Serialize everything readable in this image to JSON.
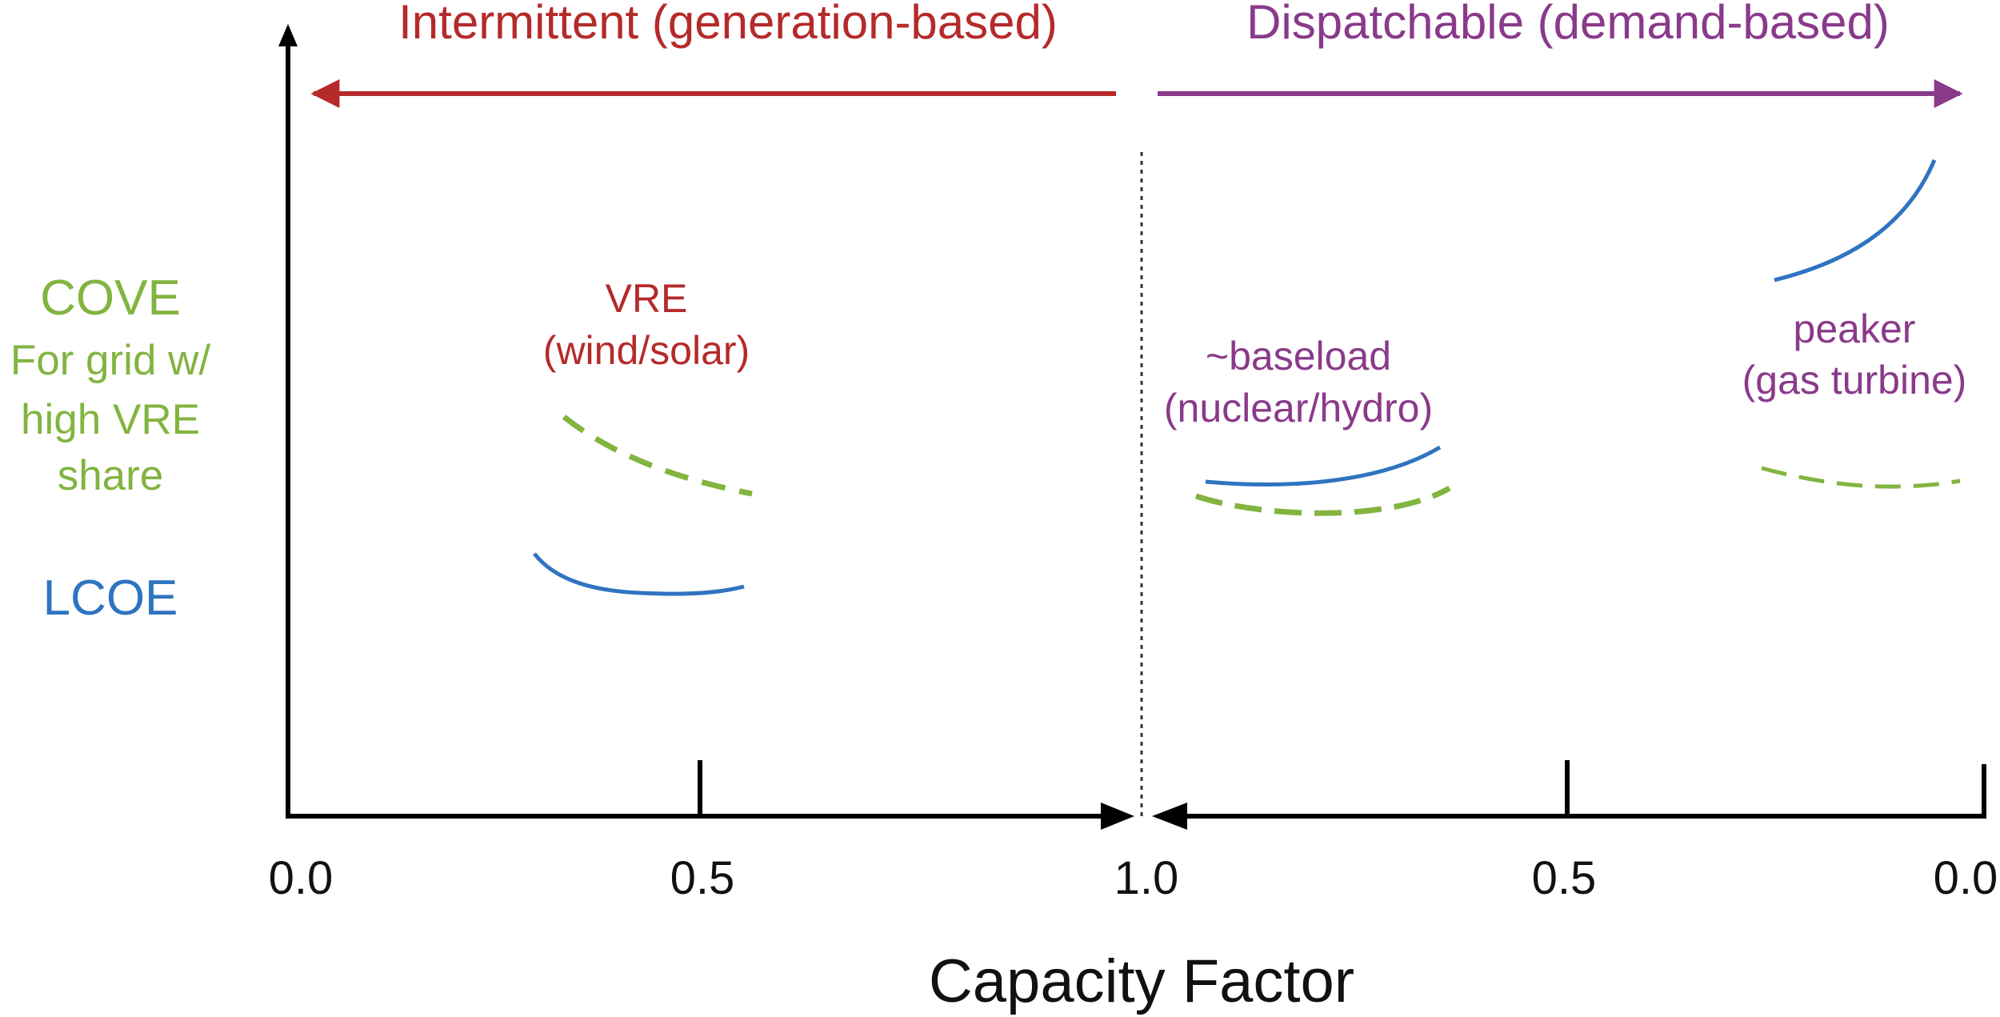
{
  "colors": {
    "intermittent": "#b52a2a",
    "dispatchable": "#8a3a8a",
    "cove": "#82b440",
    "lcoe": "#2f74c0",
    "axis": "#000000"
  },
  "regions": {
    "intermittent": "Intermittent (generation-based)",
    "dispatchable": "Dispatchable (demand-based)"
  },
  "legend": {
    "cove": "COVE",
    "cove_note": [
      "For grid w/",
      "high VRE",
      "share"
    ],
    "lcoe": "LCOE"
  },
  "x_axis": {
    "title": "Capacity Factor",
    "tick_labels": [
      "0.0",
      "0.5",
      "1.0",
      "0.5",
      "0.0"
    ]
  },
  "groups": {
    "vre": [
      "VRE",
      "(wind/solar)"
    ],
    "baseload": [
      "~baseload",
      "(nuclear/hydro)"
    ],
    "peaker": [
      "peaker",
      "(gas turbine)"
    ]
  }
}
